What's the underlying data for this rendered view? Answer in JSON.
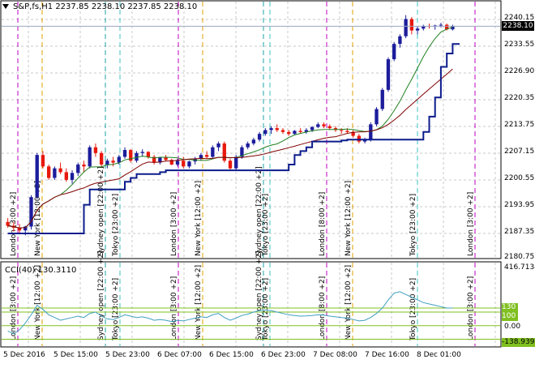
{
  "chart_title": "S&P,fs,H1  2237.85 2238.10 2237.85 2238.10",
  "cci_title": "CCI(40) 130.3110",
  "current_price": "2238.10",
  "price_axis": [
    "2240.15",
    "2233.55",
    "2226.90",
    "2220.35",
    "2213.75",
    "2207.15",
    "2200.55",
    "2193.95",
    "2187.35",
    "2180.75"
  ],
  "cci_axis": {
    "top": "416.7134",
    "level_high": "130",
    "level_low": "100",
    "zero": "0.00",
    "bottom": "-138.9395"
  },
  "time_axis": [
    "5 Dec 2016",
    "5 Dec 15:00",
    "5 Dec 23:00",
    "6 Dec 07:00",
    "6 Dec 15:00",
    "6 Dec 23:00",
    "7 Dec 08:00",
    "7 Dec 16:00",
    "8 Dec 01:00"
  ],
  "session_labels": {
    "london": "London [8:00 +2]",
    "london_alt": "London [3:00 +2]",
    "newyork": "New York [12:00 +2]",
    "sydney": "Sydney open [22:00 +2]",
    "tokyo": "Tokyo [23:00 +2]",
    "tokyo_main": "Tokyo [23:00 +2]"
  },
  "colors": {
    "bull": "#1c1c9c",
    "bear": "#e8180c",
    "session_london": "#c000c0",
    "session_newyork": "#e0a000",
    "session_sydney": "#20a0a0",
    "session_tokyo": "#40c0c0",
    "ma_fast": "#208020",
    "ma_slow": "#800000",
    "trailing": "#0c1c8c",
    "cci_line": "#40a0c0",
    "cci_levels": "#80c020"
  },
  "chart_data": {
    "type": "candlestick",
    "symbol": "S&P,fs,H1",
    "y_range": [
      2178.5,
      2242.0
    ],
    "candles": [
      [
        2187.0,
        2188.0,
        2185.5,
        2186.0
      ],
      [
        2186.0,
        2187.0,
        2184.5,
        2185.5
      ],
      [
        2185.5,
        2186.5,
        2184.0,
        2184.8
      ],
      [
        2184.8,
        2186.0,
        2183.5,
        2185.8
      ],
      [
        2185.8,
        2194.0,
        2185.0,
        2193.5
      ],
      [
        2193.5,
        2205.0,
        2193.0,
        2204.5
      ],
      [
        2204.5,
        2205.5,
        2201.0,
        2201.5
      ],
      [
        2201.5,
        2202.0,
        2198.0,
        2198.5
      ],
      [
        2198.5,
        2201.5,
        2198.0,
        2201.0
      ],
      [
        2201.0,
        2202.5,
        2199.5,
        2200.0
      ],
      [
        2200.0,
        2201.0,
        2197.5,
        2198.0
      ],
      [
        2198.0,
        2200.5,
        2197.0,
        2199.8
      ],
      [
        2199.8,
        2202.5,
        2199.0,
        2202.0
      ],
      [
        2202.0,
        2203.0,
        2200.0,
        2201.5
      ],
      [
        2201.5,
        2207.0,
        2201.0,
        2206.5
      ],
      [
        2206.5,
        2207.5,
        2204.0,
        2205.0
      ],
      [
        2205.0,
        2205.5,
        2201.5,
        2202.0
      ],
      [
        2202.0,
        2203.5,
        2201.0,
        2203.0
      ],
      [
        2203.0,
        2204.0,
        2201.5,
        2202.5
      ],
      [
        2202.5,
        2204.5,
        2202.0,
        2204.0
      ],
      [
        2204.0,
        2206.5,
        2203.5,
        2205.8
      ],
      [
        2205.8,
        2206.0,
        2202.5,
        2203.0
      ],
      [
        2203.0,
        2205.5,
        2202.5,
        2205.0
      ],
      [
        2205.0,
        2206.0,
        2204.0,
        2205.3
      ],
      [
        2205.3,
        2205.5,
        2203.5,
        2204.0
      ],
      [
        2204.0,
        2204.5,
        2202.0,
        2202.5
      ],
      [
        2202.5,
        2204.0,
        2202.0,
        2203.8
      ],
      [
        2203.8,
        2204.5,
        2202.8,
        2203.2
      ],
      [
        2203.2,
        2203.5,
        2201.8,
        2202.0
      ],
      [
        2202.0,
        2203.5,
        2201.5,
        2203.0
      ],
      [
        2203.0,
        2204.0,
        2201.0,
        2201.5
      ],
      [
        2201.5,
        2203.0,
        2201.0,
        2202.8
      ],
      [
        2202.8,
        2204.0,
        2202.0,
        2203.5
      ],
      [
        2203.5,
        2205.0,
        2203.0,
        2204.5
      ],
      [
        2204.5,
        2205.5,
        2203.5,
        2204.0
      ],
      [
        2204.0,
        2207.0,
        2203.5,
        2206.5
      ],
      [
        2206.5,
        2208.0,
        2205.5,
        2207.5
      ],
      [
        2207.5,
        2208.0,
        2202.5,
        2203.0
      ],
      [
        2203.0,
        2203.5,
        2200.5,
        2201.0
      ],
      [
        2201.0,
        2204.5,
        2200.5,
        2204.0
      ],
      [
        2204.0,
        2207.0,
        2203.5,
        2206.5
      ],
      [
        2206.5,
        2208.0,
        2206.0,
        2207.5
      ],
      [
        2207.5,
        2209.0,
        2207.0,
        2208.5
      ],
      [
        2208.5,
        2210.5,
        2208.0,
        2210.0
      ],
      [
        2210.0,
        2211.5,
        2209.5,
        2211.0
      ],
      [
        2211.0,
        2212.0,
        2210.0,
        2211.5
      ],
      [
        2211.5,
        2212.5,
        2210.5,
        2211.0
      ],
      [
        2211.0,
        2211.5,
        2210.0,
        2210.5
      ],
      [
        2210.5,
        2211.0,
        2209.5,
        2210.0
      ],
      [
        2210.0,
        2211.0,
        2209.8,
        2210.8
      ],
      [
        2210.8,
        2211.5,
        2210.0,
        2210.5
      ],
      [
        2210.5,
        2211.5,
        2210.0,
        2211.0
      ],
      [
        2211.0,
        2212.0,
        2210.5,
        2211.8
      ],
      [
        2211.8,
        2213.0,
        2211.5,
        2212.5
      ],
      [
        2212.5,
        2213.0,
        2211.5,
        2212.0
      ],
      [
        2212.0,
        2212.5,
        2211.0,
        2211.5
      ],
      [
        2211.5,
        2212.0,
        2210.5,
        2211.0
      ],
      [
        2211.0,
        2211.5,
        2210.0,
        2210.8
      ],
      [
        2210.8,
        2211.5,
        2210.0,
        2210.5
      ],
      [
        2210.5,
        2211.0,
        2209.0,
        2209.5
      ],
      [
        2209.5,
        2210.0,
        2207.5,
        2208.0
      ],
      [
        2208.0,
        2209.0,
        2207.5,
        2208.5
      ],
      [
        2208.5,
        2213.0,
        2208.0,
        2212.5
      ],
      [
        2212.5,
        2217.0,
        2212.0,
        2216.5
      ],
      [
        2216.5,
        2222.0,
        2216.0,
        2221.5
      ],
      [
        2221.5,
        2230.0,
        2221.0,
        2229.5
      ],
      [
        2229.5,
        2234.0,
        2229.0,
        2233.5
      ],
      [
        2233.5,
        2236.0,
        2232.5,
        2235.5
      ],
      [
        2235.5,
        2241.0,
        2235.0,
        2240.0
      ],
      [
        2240.0,
        2240.5,
        2236.0,
        2237.0
      ],
      [
        2237.0,
        2238.0,
        2236.0,
        2237.5
      ],
      [
        2237.5,
        2238.5,
        2237.0,
        2238.2
      ],
      [
        2238.2,
        2238.8,
        2237.5,
        2238.0
      ],
      [
        2238.0,
        2238.5,
        2237.2,
        2238.3
      ],
      [
        2238.3,
        2239.0,
        2237.8,
        2238.5
      ],
      [
        2238.5,
        2238.8,
        2237.0,
        2237.3
      ],
      [
        2237.3,
        2238.5,
        2237.0,
        2238.1
      ]
    ],
    "cci": [
      -40,
      -60,
      -30,
      20,
      80,
      150,
      120,
      80,
      60,
      40,
      50,
      60,
      70,
      60,
      90,
      100,
      70,
      50,
      45,
      60,
      80,
      70,
      60,
      65,
      55,
      40,
      45,
      40,
      30,
      40,
      35,
      45,
      55,
      65,
      60,
      80,
      90,
      60,
      40,
      55,
      75,
      85,
      100,
      110,
      115,
      110,
      100,
      90,
      80,
      75,
      70,
      72,
      75,
      80,
      78,
      70,
      65,
      60,
      55,
      45,
      35,
      40,
      60,
      90,
      130,
      190,
      240,
      250,
      230,
      210,
      190,
      170,
      160,
      150,
      140,
      130,
      130
    ]
  }
}
